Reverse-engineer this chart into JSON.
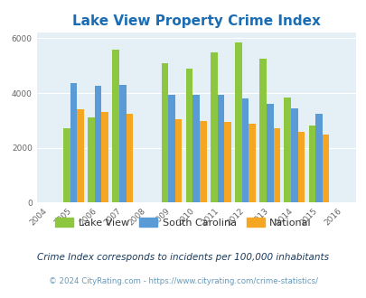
{
  "title": "Lake View Property Crime Index",
  "years": [
    2004,
    2005,
    2006,
    2007,
    2008,
    2009,
    2010,
    2011,
    2012,
    2013,
    2014,
    2015,
    2016
  ],
  "data_years": [
    2005,
    2006,
    2007,
    2009,
    2010,
    2011,
    2012,
    2013,
    2014,
    2015
  ],
  "lake_view": [
    2700,
    3100,
    5600,
    5100,
    4900,
    5500,
    5850,
    5250,
    3850,
    2800
  ],
  "south_carolina": [
    4350,
    4250,
    4300,
    3950,
    3950,
    3950,
    3800,
    3600,
    3450,
    3250
  ],
  "national": [
    3400,
    3300,
    3250,
    3050,
    2980,
    2950,
    2870,
    2720,
    2580,
    2470
  ],
  "lv_color": "#8dc63f",
  "sc_color": "#5b9bd5",
  "nat_color": "#f5a623",
  "bg_color": "#e4f0f5",
  "title_color": "#1a6db5",
  "ylim": [
    0,
    6200
  ],
  "yticks": [
    0,
    2000,
    4000,
    6000
  ],
  "subtitle": "Crime Index corresponds to incidents per 100,000 inhabitants",
  "footer": "© 2024 CityRating.com - https://www.cityrating.com/crime-statistics/",
  "legend_labels": [
    "Lake View",
    "South Carolina",
    "National"
  ],
  "bar_width": 0.28
}
